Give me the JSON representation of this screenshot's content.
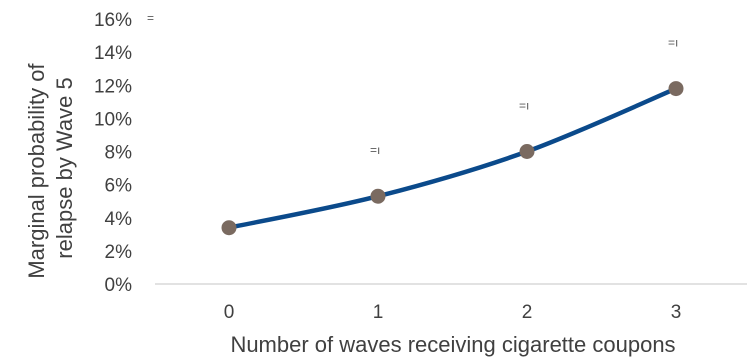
{
  "chart_data": {
    "type": "line",
    "categories": [
      "0",
      "1",
      "2",
      "3"
    ],
    "series": [
      {
        "values": [
          3.4,
          5.3,
          8.0,
          11.8
        ],
        "color": "#0b4a8b",
        "marker_color": "#7a6a60"
      }
    ],
    "xlabel": "Number of waves receiving cigarette coupons",
    "ylabel": "Marginal probability of relapse by Wave 5",
    "ylim": [
      0,
      16
    ],
    "y_ticks": [
      "0%",
      "2%",
      "4%",
      "6%",
      "8%",
      "10%",
      "12%",
      "14%",
      "16%"
    ],
    "grid": false,
    "legend_fragment": "=",
    "data_label_fragments": [
      "=ı",
      "=ı",
      "=ı"
    ]
  }
}
